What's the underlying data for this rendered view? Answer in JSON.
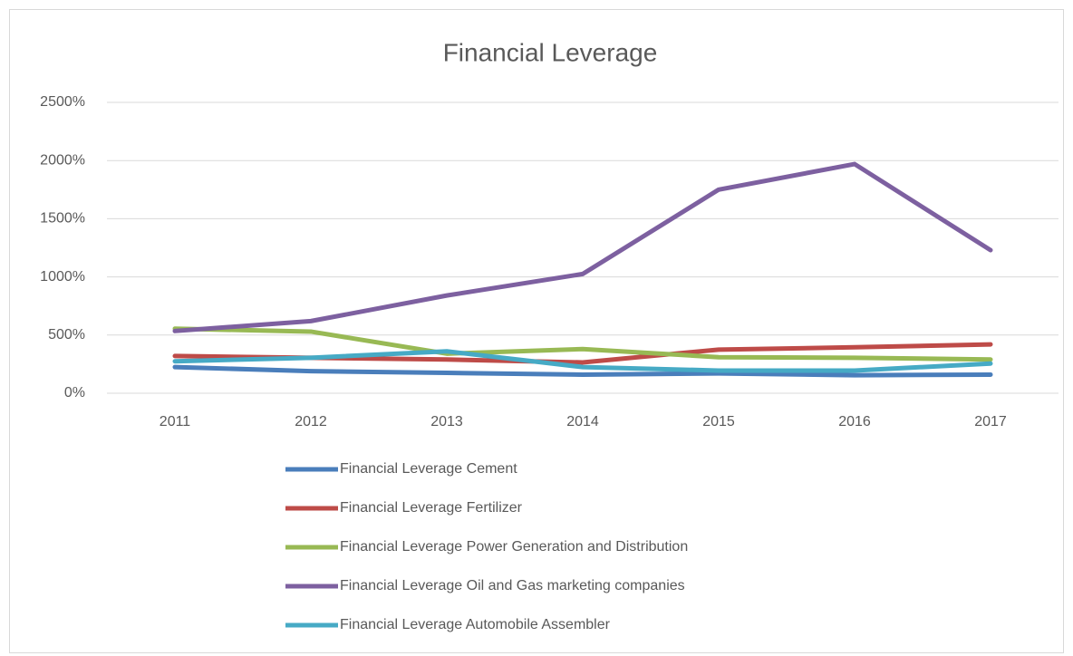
{
  "chart_data": {
    "type": "line",
    "title": "Financial Leverage",
    "categories": [
      "2011",
      "2012",
      "2013",
      "2014",
      "2015",
      "2016",
      "2017"
    ],
    "series": [
      {
        "name": "Financial Leverage Cement",
        "color": "#4a7ebb",
        "values": [
          225,
          190,
          175,
          160,
          170,
          155,
          160
        ]
      },
      {
        "name": "Financial Leverage Fertilizer",
        "color": "#be4b48",
        "values": [
          320,
          305,
          290,
          265,
          375,
          395,
          420
        ]
      },
      {
        "name": "Financial Leverage Power Generation and Distribution",
        "color": "#98b954",
        "values": [
          555,
          530,
          340,
          380,
          310,
          305,
          290
        ]
      },
      {
        "name": "Financial Leverage Oil and Gas marketing companies",
        "color": "#7d60a0",
        "values": [
          535,
          620,
          840,
          1025,
          1750,
          1970,
          1230
        ]
      },
      {
        "name": "Financial Leverage Automobile Assembler",
        "color": "#46aac5",
        "values": [
          275,
          305,
          360,
          225,
          195,
          195,
          255
        ]
      }
    ],
    "ylim": [
      0,
      2500
    ],
    "yticks": [
      {
        "value": 0,
        "label": "0%"
      },
      {
        "value": 500,
        "label": "500%"
      },
      {
        "value": 1000,
        "label": "1000%"
      },
      {
        "value": 1500,
        "label": "1500%"
      },
      {
        "value": 2000,
        "label": "2000%"
      },
      {
        "value": 2500,
        "label": "2500%"
      }
    ],
    "grid": true,
    "legend": "bottom"
  }
}
